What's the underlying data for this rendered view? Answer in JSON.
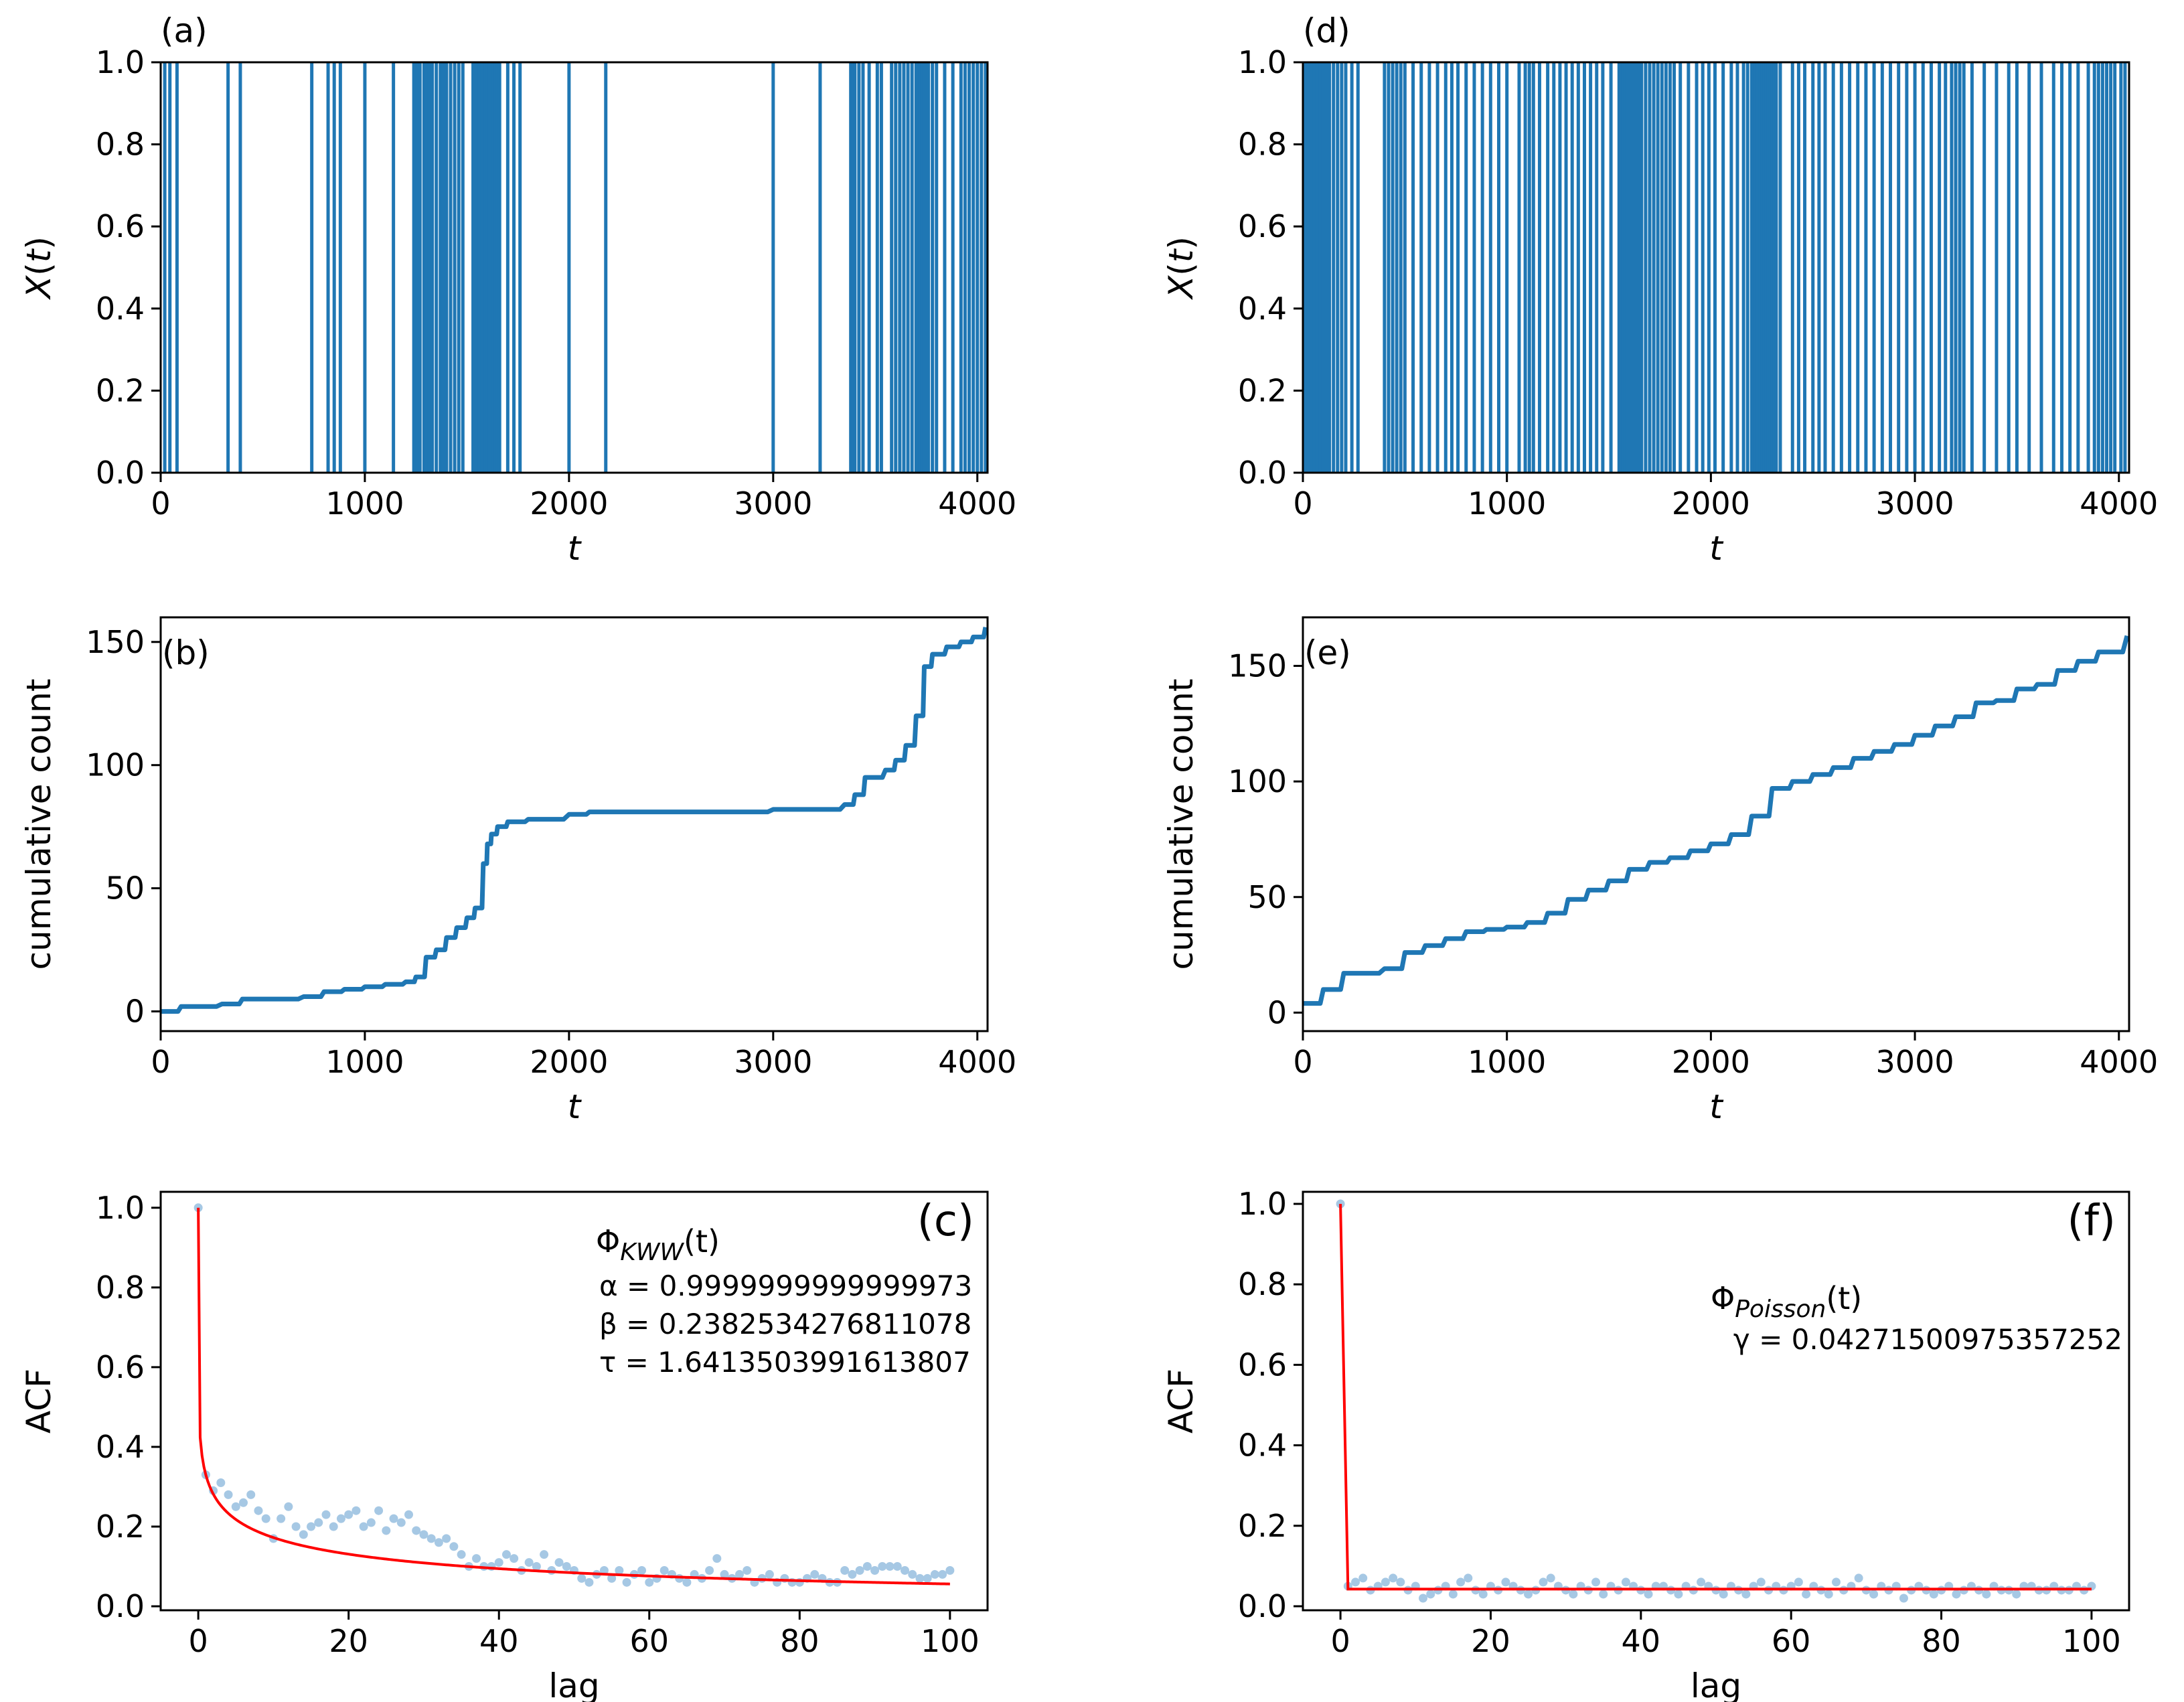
{
  "figure": {
    "panels": [
      {
        "id": "a",
        "label": "(a)"
      },
      {
        "id": "b",
        "label": "(b)"
      },
      {
        "id": "c",
        "label": "(c)"
      },
      {
        "id": "d",
        "label": "(d)"
      },
      {
        "id": "e",
        "label": "(e)"
      },
      {
        "id": "f",
        "label": "(f)"
      }
    ]
  },
  "colors": {
    "series": "#1f77b4",
    "fit": "#ff0000",
    "scatter": "#a6c8e4",
    "axes": "#000000"
  },
  "chart_data": [
    {
      "id": "a",
      "panel_label": "(a)",
      "type": "event-raster",
      "xlabel": "t",
      "ylabel": "X(t)",
      "xlim": [
        0,
        4050
      ],
      "ylim": [
        0,
        1
      ],
      "xticks": [
        0,
        1000,
        2000,
        3000,
        4000
      ],
      "yticks": [
        0.0,
        0.2,
        0.4,
        0.6,
        0.8,
        1.0
      ],
      "xtick_labels": [
        "0",
        "1000",
        "2000",
        "3000",
        "4000"
      ],
      "ytick_labels": [
        "0.0",
        "0.2",
        "0.4",
        "0.6",
        "0.8",
        "1.0"
      ],
      "event_times": [
        20,
        45,
        80,
        330,
        390,
        740,
        820,
        850,
        880,
        1000,
        1140,
        1240,
        1255,
        1270,
        1290,
        1300,
        1315,
        1330,
        1350,
        1370,
        1385,
        1400,
        1420,
        1440,
        1460,
        1480,
        1530,
        1545,
        1560,
        1575,
        1590,
        1600,
        1610,
        1620,
        1630,
        1640,
        1650,
        1660,
        1700,
        1730,
        1760,
        2000,
        2180,
        3000,
        3230,
        3380,
        3390,
        3400,
        3420,
        3440,
        3470,
        3510,
        3530,
        3580,
        3600,
        3620,
        3640,
        3660,
        3680,
        3700,
        3710,
        3720,
        3730,
        3740,
        3750,
        3760,
        3780,
        3800,
        3840,
        3880,
        3920,
        3940,
        3960,
        3980,
        4000,
        4020,
        4040
      ]
    },
    {
      "id": "b",
      "panel_label": "(b)",
      "type": "line",
      "xlabel": "t",
      "ylabel": "cumulative count",
      "xlim": [
        0,
        4050
      ],
      "ylim": [
        -8,
        160
      ],
      "xticks": [
        0,
        1000,
        2000,
        3000,
        4000
      ],
      "yticks": [
        0,
        50,
        100,
        150
      ],
      "xtick_labels": [
        "0",
        "1000",
        "2000",
        "3000",
        "4000"
      ],
      "ytick_labels": [
        "0",
        "50",
        "100",
        "150"
      ],
      "x": [
        0,
        100,
        300,
        400,
        700,
        800,
        900,
        1000,
        1100,
        1200,
        1250,
        1300,
        1350,
        1400,
        1450,
        1500,
        1540,
        1580,
        1600,
        1620,
        1650,
        1700,
        1800,
        2000,
        2100,
        2500,
        3000,
        3200,
        3350,
        3400,
        3450,
        3550,
        3600,
        3650,
        3700,
        3740,
        3780,
        3850,
        3920,
        3980,
        4040
      ],
      "y": [
        0,
        2,
        3,
        5,
        6,
        8,
        9,
        10,
        11,
        12,
        14,
        22,
        25,
        30,
        34,
        38,
        42,
        60,
        68,
        72,
        75,
        77,
        78,
        80,
        81,
        81,
        82,
        82,
        84,
        88,
        95,
        98,
        102,
        108,
        120,
        140,
        145,
        148,
        150,
        152,
        156
      ]
    },
    {
      "id": "c",
      "panel_label": "(c)",
      "type": "scatter+line",
      "xlabel": "lag",
      "ylabel": "ACF",
      "xlim": [
        -5,
        105
      ],
      "ylim": [
        -0.01,
        1.04
      ],
      "xticks": [
        0,
        20,
        40,
        60,
        80,
        100
      ],
      "yticks": [
        0.0,
        0.2,
        0.4,
        0.6,
        0.8,
        1.0
      ],
      "xtick_labels": [
        "0",
        "20",
        "40",
        "60",
        "80",
        "100"
      ],
      "ytick_labels": [
        "0.0",
        "0.2",
        "0.4",
        "0.6",
        "0.8",
        "1.0"
      ],
      "annotation": {
        "title": "Φ_KWW(t)",
        "title_main": "Φ",
        "title_sub": "KWW",
        "title_arg": "(t)",
        "params": [
          "α = 0.9999999999999973",
          "β = 0.2382534276811078",
          "τ = 1.6413503991613807"
        ]
      },
      "fit": {
        "model": "KWW",
        "alpha": 0.9999999999999973,
        "beta": 0.2382534276811078,
        "tau": 1.6413503991613807
      },
      "scatter_y": [
        1.0,
        0.33,
        0.29,
        0.31,
        0.28,
        0.25,
        0.26,
        0.28,
        0.24,
        0.22,
        0.17,
        0.22,
        0.25,
        0.2,
        0.18,
        0.2,
        0.21,
        0.23,
        0.2,
        0.22,
        0.23,
        0.24,
        0.2,
        0.21,
        0.24,
        0.19,
        0.22,
        0.21,
        0.23,
        0.19,
        0.18,
        0.17,
        0.16,
        0.17,
        0.15,
        0.13,
        0.1,
        0.12,
        0.1,
        0.1,
        0.11,
        0.13,
        0.12,
        0.09,
        0.11,
        0.1,
        0.13,
        0.09,
        0.11,
        0.1,
        0.09,
        0.07,
        0.06,
        0.08,
        0.09,
        0.07,
        0.09,
        0.06,
        0.08,
        0.09,
        0.06,
        0.07,
        0.09,
        0.08,
        0.07,
        0.06,
        0.08,
        0.07,
        0.09,
        0.12,
        0.08,
        0.07,
        0.08,
        0.09,
        0.06,
        0.07,
        0.08,
        0.06,
        0.07,
        0.06,
        0.06,
        0.07,
        0.08,
        0.07,
        0.06,
        0.06,
        0.09,
        0.08,
        0.09,
        0.1,
        0.09,
        0.1,
        0.1,
        0.1,
        0.09,
        0.08,
        0.07,
        0.07,
        0.08,
        0.08,
        0.09
      ]
    },
    {
      "id": "d",
      "panel_label": "(d)",
      "type": "event-raster",
      "xlabel": "t",
      "ylabel": "X(t)",
      "xlim": [
        0,
        4050
      ],
      "ylim": [
        0,
        1
      ],
      "xticks": [
        0,
        1000,
        2000,
        3000,
        4000
      ],
      "yticks": [
        0.0,
        0.2,
        0.4,
        0.6,
        0.8,
        1.0
      ],
      "xtick_labels": [
        "0",
        "1000",
        "2000",
        "3000",
        "4000"
      ],
      "ytick_labels": [
        "0.0",
        "0.2",
        "0.4",
        "0.6",
        "0.8",
        "1.0"
      ],
      "event_times": [
        10,
        25,
        40,
        55,
        70,
        85,
        100,
        115,
        130,
        150,
        170,
        190,
        210,
        240,
        270,
        400,
        420,
        440,
        460,
        480,
        500,
        540,
        580,
        620,
        660,
        700,
        730,
        760,
        800,
        840,
        880,
        920,
        960,
        1000,
        1060,
        1090,
        1110,
        1130,
        1160,
        1200,
        1230,
        1260,
        1290,
        1320,
        1350,
        1380,
        1410,
        1440,
        1470,
        1510,
        1550,
        1560,
        1570,
        1580,
        1590,
        1600,
        1610,
        1620,
        1630,
        1640,
        1650,
        1660,
        1680,
        1700,
        1720,
        1740,
        1760,
        1780,
        1800,
        1820,
        1850,
        1890,
        1930,
        1960,
        1990,
        2020,
        2060,
        2100,
        2130,
        2160,
        2180,
        2200,
        2210,
        2220,
        2230,
        2240,
        2250,
        2260,
        2270,
        2280,
        2290,
        2300,
        2310,
        2320,
        2340,
        2400,
        2430,
        2460,
        2500,
        2530,
        2560,
        2600,
        2640,
        2680,
        2720,
        2760,
        2800,
        2840,
        2880,
        2920,
        2960,
        3000,
        3040,
        3080,
        3120,
        3150,
        3180,
        3200,
        3220,
        3240,
        3280,
        3340,
        3400,
        3460,
        3500,
        3560,
        3620,
        3680,
        3720,
        3760,
        3800,
        3850,
        3880,
        3900,
        3920,
        3940,
        3960,
        3980,
        4010,
        4030
      ]
    },
    {
      "id": "e",
      "panel_label": "(e)",
      "type": "line",
      "xlabel": "t",
      "ylabel": "cumulative count",
      "xlim": [
        0,
        4050
      ],
      "ylim": [
        -8,
        171
      ],
      "xticks": [
        0,
        1000,
        2000,
        3000,
        4000
      ],
      "yticks": [
        0,
        50,
        100,
        150
      ],
      "xtick_labels": [
        "0",
        "1000",
        "2000",
        "3000",
        "4000"
      ],
      "ytick_labels": [
        "0",
        "50",
        "100",
        "150"
      ],
      "x": [
        0,
        100,
        200,
        400,
        500,
        600,
        700,
        800,
        900,
        1000,
        1100,
        1200,
        1300,
        1400,
        1500,
        1600,
        1700,
        1800,
        1900,
        2000,
        2100,
        2200,
        2300,
        2400,
        2500,
        2600,
        2700,
        2800,
        2900,
        3000,
        3100,
        3200,
        3300,
        3400,
        3500,
        3600,
        3700,
        3800,
        3900,
        4040
      ],
      "y": [
        4,
        10,
        17,
        19,
        26,
        29,
        32,
        35,
        36,
        37,
        39,
        43,
        49,
        53,
        57,
        62,
        65,
        67,
        70,
        73,
        77,
        85,
        97,
        100,
        103,
        106,
        110,
        113,
        116,
        120,
        124,
        128,
        134,
        135,
        140,
        142,
        148,
        152,
        156,
        163
      ]
    },
    {
      "id": "f",
      "panel_label": "(f)",
      "type": "scatter+line",
      "xlabel": "lag",
      "ylabel": "ACF",
      "xlim": [
        -5,
        105
      ],
      "ylim": [
        -0.01,
        1.03
      ],
      "xticks": [
        0,
        20,
        40,
        60,
        80,
        100
      ],
      "yticks": [
        0.0,
        0.2,
        0.4,
        0.6,
        0.8,
        1.0
      ],
      "xtick_labels": [
        "0",
        "20",
        "40",
        "60",
        "80",
        "100"
      ],
      "ytick_labels": [
        "0.0",
        "0.2",
        "0.4",
        "0.6",
        "0.8",
        "1.0"
      ],
      "annotation": {
        "title": "Φ_Poisson(t)",
        "title_main": "Φ",
        "title_sub": "Poisson",
        "title_arg": "(t)",
        "params": [
          "γ = 0.04271500975357252"
        ]
      },
      "fit": {
        "model": "Poisson",
        "gamma": 0.04271500975357252
      },
      "scatter_y": [
        1.0,
        0.05,
        0.06,
        0.07,
        0.04,
        0.05,
        0.06,
        0.07,
        0.06,
        0.04,
        0.05,
        0.02,
        0.03,
        0.04,
        0.05,
        0.03,
        0.06,
        0.07,
        0.04,
        0.03,
        0.05,
        0.04,
        0.06,
        0.05,
        0.04,
        0.03,
        0.04,
        0.06,
        0.07,
        0.05,
        0.04,
        0.03,
        0.05,
        0.04,
        0.06,
        0.03,
        0.05,
        0.04,
        0.06,
        0.05,
        0.04,
        0.03,
        0.05,
        0.05,
        0.04,
        0.03,
        0.05,
        0.04,
        0.06,
        0.05,
        0.04,
        0.03,
        0.05,
        0.04,
        0.03,
        0.05,
        0.06,
        0.04,
        0.05,
        0.04,
        0.05,
        0.06,
        0.03,
        0.05,
        0.04,
        0.03,
        0.06,
        0.04,
        0.05,
        0.07,
        0.04,
        0.03,
        0.05,
        0.04,
        0.05,
        0.02,
        0.04,
        0.05,
        0.04,
        0.03,
        0.04,
        0.05,
        0.03,
        0.04,
        0.05,
        0.04,
        0.03,
        0.05,
        0.04,
        0.04,
        0.03,
        0.05,
        0.05,
        0.04,
        0.04,
        0.05,
        0.04,
        0.04,
        0.05,
        0.04,
        0.05
      ]
    }
  ]
}
